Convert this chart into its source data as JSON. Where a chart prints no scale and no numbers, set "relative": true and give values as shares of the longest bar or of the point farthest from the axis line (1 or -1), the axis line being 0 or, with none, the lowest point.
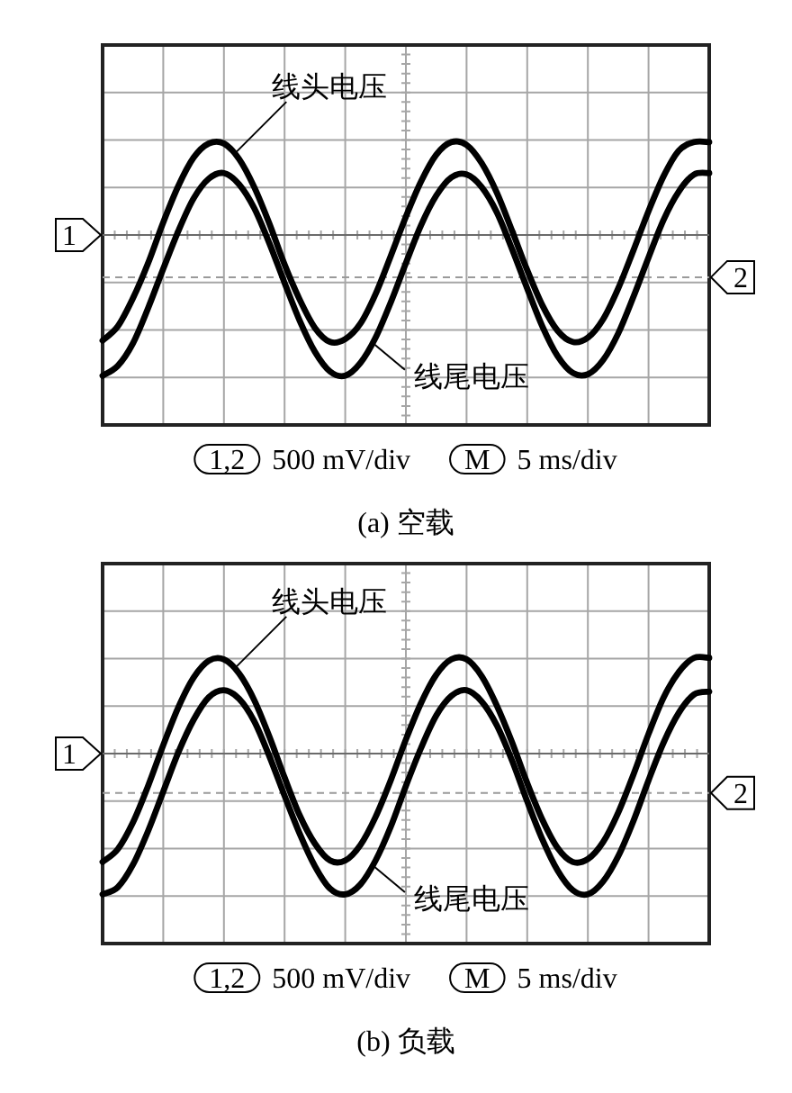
{
  "chart_data": [
    {
      "type": "line",
      "relative": true,
      "title": "(a) 空载",
      "grid": true,
      "categories": [
        null,
        null,
        null,
        null,
        null,
        null,
        null,
        null,
        null,
        null,
        null,
        null,
        null,
        null,
        null,
        null,
        null,
        null,
        null,
        null,
        null,
        null,
        null,
        null,
        null,
        null,
        null,
        null,
        null,
        null,
        null,
        null,
        null,
        null,
        null,
        null,
        null,
        null,
        null,
        null,
        null
      ],
      "series": [
        {
          "name": "线头电压",
          "color": "#000000",
          "values": [
            -0.75,
            -0.65,
            -0.45,
            -0.2,
            0.09,
            0.35,
            0.55,
            0.65,
            0.65,
            0.54,
            0.34,
            0.08,
            -0.21,
            -0.46,
            -0.66,
            -0.76,
            -0.74,
            -0.63,
            -0.42,
            -0.15,
            0.13,
            0.38,
            0.57,
            0.66,
            0.64,
            0.51,
            0.3,
            0.03,
            -0.25,
            -0.5,
            -0.68,
            -0.76,
            -0.73,
            -0.6,
            -0.38,
            -0.11,
            0.17,
            0.42,
            0.6,
            0.66,
            0.66
          ]
        },
        {
          "name": "线尾电压",
          "color": "#000000",
          "values": [
            -1.0,
            -0.93,
            -0.77,
            -0.52,
            -0.24,
            0.03,
            0.26,
            0.4,
            0.44,
            0.36,
            0.19,
            -0.06,
            -0.34,
            -0.61,
            -0.83,
            -0.97,
            -1.0,
            -0.91,
            -0.73,
            -0.48,
            -0.2,
            0.07,
            0.28,
            0.41,
            0.43,
            0.34,
            0.16,
            -0.1,
            -0.38,
            -0.65,
            -0.86,
            -0.98,
            -0.99,
            -0.89,
            -0.7,
            -0.44,
            -0.16,
            0.11,
            0.31,
            0.43,
            0.44
          ]
        }
      ],
      "ref_lines": [
        {
          "axis": "y",
          "value": 0
        },
        {
          "axis": "y",
          "value": -0.3,
          "line_style": "dashed"
        }
      ],
      "annotations": [
        "1",
        "2",
        "1,2",
        "500 mV/div",
        "M",
        "5 ms/div"
      ]
    },
    {
      "type": "line",
      "relative": true,
      "title": "(b) 负载",
      "grid": true,
      "categories": [
        null,
        null,
        null,
        null,
        null,
        null,
        null,
        null,
        null,
        null,
        null,
        null,
        null,
        null,
        null,
        null,
        null,
        null,
        null,
        null,
        null,
        null,
        null,
        null,
        null,
        null,
        null,
        null,
        null,
        null,
        null,
        null,
        null,
        null,
        null,
        null,
        null,
        null,
        null,
        null,
        null
      ],
      "series": [
        {
          "name": "线头电压",
          "color": "#000000",
          "values": [
            -0.77,
            -0.68,
            -0.49,
            -0.23,
            0.06,
            0.33,
            0.54,
            0.66,
            0.67,
            0.57,
            0.38,
            0.12,
            -0.17,
            -0.44,
            -0.64,
            -0.76,
            -0.76,
            -0.65,
            -0.45,
            -0.19,
            0.1,
            0.36,
            0.56,
            0.67,
            0.67,
            0.55,
            0.34,
            0.08,
            -0.21,
            -0.47,
            -0.67,
            -0.77,
            -0.75,
            -0.63,
            -0.42,
            -0.15,
            0.14,
            0.4,
            0.58,
            0.68,
            0.68
          ]
        },
        {
          "name": "线尾电压",
          "color": "#000000",
          "values": [
            -1.0,
            -0.95,
            -0.79,
            -0.55,
            -0.27,
            0.01,
            0.24,
            0.4,
            0.45,
            0.39,
            0.23,
            -0.02,
            -0.3,
            -0.57,
            -0.8,
            -0.96,
            -1.0,
            -0.93,
            -0.76,
            -0.52,
            -0.23,
            0.04,
            0.27,
            0.41,
            0.45,
            0.37,
            0.2,
            -0.05,
            -0.34,
            -0.61,
            -0.83,
            -0.97,
            -1.0,
            -0.91,
            -0.73,
            -0.48,
            -0.19,
            0.08,
            0.29,
            0.42,
            0.44
          ]
        }
      ],
      "ref_lines": [
        {
          "axis": "y",
          "value": 0
        },
        {
          "axis": "y",
          "value": -0.28,
          "line_style": "dashed"
        }
      ],
      "annotations": [
        "1",
        "2",
        "1,2",
        "500 mV/div",
        "M",
        "5 ms/div"
      ]
    }
  ]
}
